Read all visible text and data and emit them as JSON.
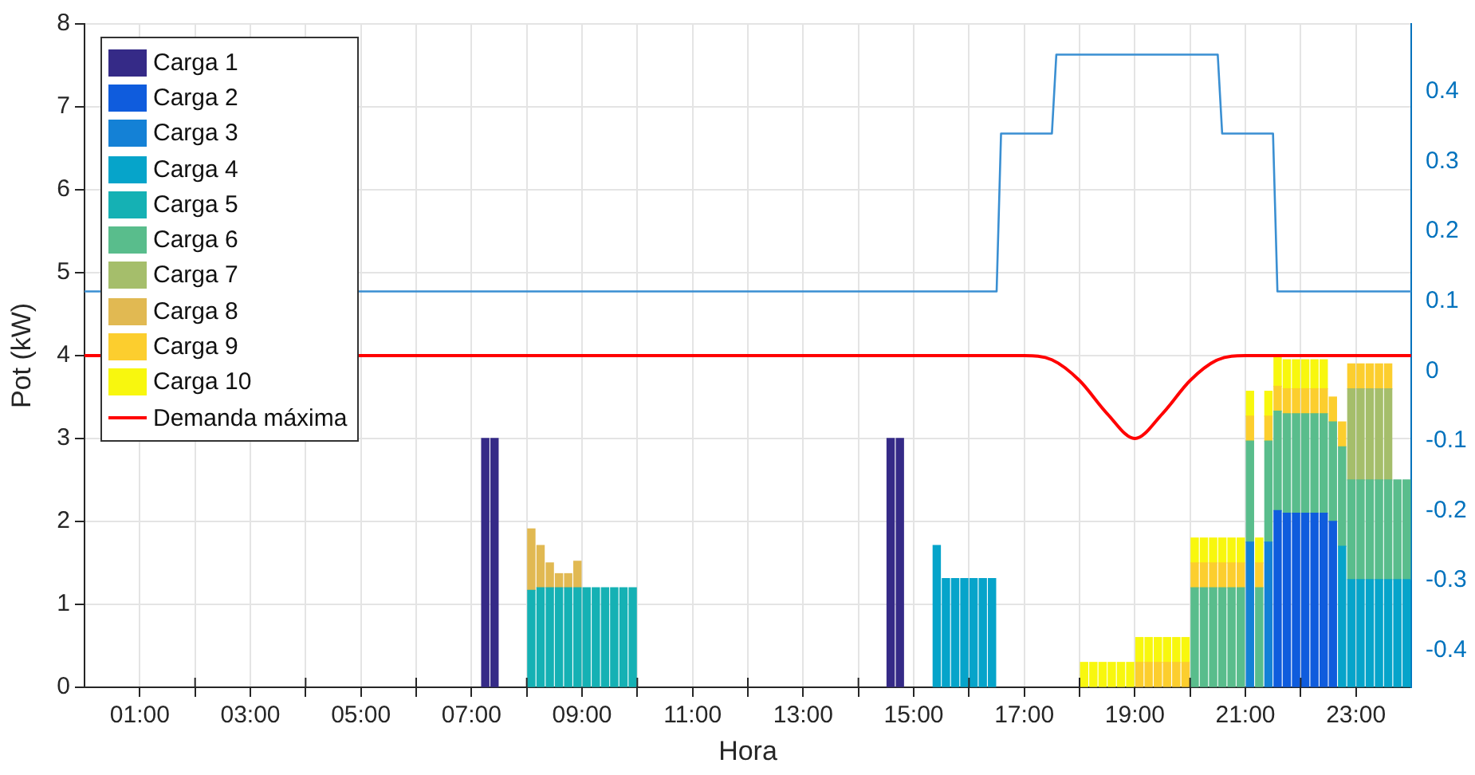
{
  "chart_data": {
    "type": "bar",
    "xlabel": "Hora",
    "ylabel": "Pot (kW)",
    "stacked": true,
    "grid": true,
    "legend": "top left",
    "xlim": [
      0,
      24
    ],
    "xticks": [
      {
        "value": 1,
        "label": "01:00"
      },
      {
        "value": 2,
        "label": null
      },
      {
        "value": 3,
        "label": "03:00"
      },
      {
        "value": 4,
        "label": null
      },
      {
        "value": 5,
        "label": "05:00"
      },
      {
        "value": 6,
        "label": null
      },
      {
        "value": 7,
        "label": "07:00"
      },
      {
        "value": 8,
        "label": null
      },
      {
        "value": 9,
        "label": "09:00"
      },
      {
        "value": 10,
        "label": null
      },
      {
        "value": 11,
        "label": "11:00"
      },
      {
        "value": 12,
        "label": null
      },
      {
        "value": 13,
        "label": "13:00"
      },
      {
        "value": 14,
        "label": null
      },
      {
        "value": 15,
        "label": "15:00"
      },
      {
        "value": 16,
        "label": null
      },
      {
        "value": 17,
        "label": "17:00"
      },
      {
        "value": 18,
        "label": null
      },
      {
        "value": 19,
        "label": "19:00"
      },
      {
        "value": 20,
        "label": null
      },
      {
        "value": 21,
        "label": "21:00"
      },
      {
        "value": 22,
        "label": null
      },
      {
        "value": 23,
        "label": "23:00"
      }
    ],
    "ylim": [
      0,
      8
    ],
    "yticks": [
      0,
      1,
      2,
      3,
      4,
      5,
      6,
      7,
      8
    ],
    "y2lim": [
      -0.453,
      0.497
    ],
    "y2ticks": [
      -0.4,
      -0.3,
      -0.2,
      -0.1,
      0,
      0.1,
      0.2,
      0.3,
      0.4
    ],
    "x": [
      7.25,
      7.417,
      8.083,
      8.25,
      8.417,
      8.583,
      8.75,
      8.917,
      9.083,
      9.25,
      9.417,
      9.583,
      9.75,
      9.917,
      14.583,
      14.75,
      15.417,
      15.583,
      15.75,
      15.917,
      16.083,
      16.25,
      16.417,
      18.083,
      18.25,
      18.417,
      18.583,
      18.75,
      18.917,
      19.083,
      19.25,
      19.417,
      19.583,
      19.75,
      19.917,
      20.083,
      20.25,
      20.417,
      20.583,
      20.75,
      20.917,
      21.083,
      21.25,
      21.417,
      21.583,
      21.75,
      21.917,
      22.083,
      22.25,
      22.417,
      22.583,
      22.75,
      22.917,
      23.083,
      23.25,
      23.417,
      23.583,
      23.75,
      23.917
    ],
    "series": [
      {
        "name": "Carga 1",
        "color": "#352a87",
        "values": [
          3,
          3,
          null,
          null,
          null,
          null,
          null,
          null,
          null,
          null,
          null,
          null,
          null,
          null,
          3,
          3,
          null,
          null,
          null,
          null,
          null,
          null,
          null,
          null,
          null,
          null,
          null,
          null,
          null,
          null,
          null,
          null,
          null,
          null,
          null,
          null,
          null,
          null,
          null,
          null,
          null,
          null,
          null,
          null,
          null,
          null,
          null,
          null,
          null,
          null,
          null,
          null,
          null,
          null,
          null,
          null,
          null,
          null,
          null
        ]
      },
      {
        "name": "Carga 2",
        "color": "#0f5cdd",
        "values": [
          null,
          null,
          null,
          null,
          null,
          null,
          null,
          null,
          null,
          null,
          null,
          null,
          null,
          null,
          null,
          null,
          null,
          null,
          null,
          null,
          null,
          null,
          null,
          null,
          null,
          null,
          null,
          null,
          null,
          null,
          null,
          null,
          null,
          null,
          null,
          null,
          null,
          null,
          null,
          null,
          null,
          null,
          null,
          null,
          2.13,
          2.1,
          2.1,
          2.1,
          2.1,
          2.1,
          2.0,
          null,
          null,
          null,
          null,
          null,
          null,
          null,
          null
        ]
      },
      {
        "name": "Carga 3",
        "color": "#1481d6",
        "values": [
          null,
          null,
          null,
          null,
          null,
          null,
          null,
          null,
          null,
          null,
          null,
          null,
          null,
          null,
          null,
          null,
          null,
          null,
          null,
          null,
          null,
          null,
          null,
          null,
          null,
          null,
          null,
          null,
          null,
          null,
          null,
          null,
          null,
          null,
          null,
          null,
          null,
          null,
          null,
          null,
          null,
          1.75,
          null,
          1.75,
          null,
          null,
          null,
          null,
          null,
          null,
          null,
          null,
          null,
          null,
          null,
          null,
          null,
          null,
          null
        ]
      },
      {
        "name": "Carga 4",
        "color": "#06a4ca",
        "values": [
          null,
          null,
          null,
          null,
          null,
          null,
          null,
          null,
          null,
          null,
          null,
          null,
          null,
          null,
          null,
          null,
          1.71,
          1.31,
          1.31,
          1.31,
          1.31,
          1.31,
          1.31,
          null,
          null,
          null,
          null,
          null,
          null,
          null,
          null,
          null,
          null,
          null,
          null,
          null,
          null,
          null,
          null,
          null,
          null,
          null,
          null,
          null,
          null,
          null,
          null,
          null,
          null,
          null,
          null,
          1.7,
          1.3,
          1.3,
          1.3,
          1.3,
          1.3,
          1.3,
          1.3
        ]
      },
      {
        "name": "Carga 5",
        "color": "#15b1b4",
        "values": [
          null,
          null,
          1.17,
          1.2,
          1.2,
          1.2,
          1.2,
          1.2,
          1.2,
          1.2,
          1.2,
          1.2,
          1.2,
          1.2,
          null,
          null,
          null,
          null,
          null,
          null,
          null,
          null,
          null,
          null,
          null,
          null,
          null,
          null,
          null,
          null,
          null,
          null,
          null,
          null,
          null,
          null,
          null,
          null,
          null,
          null,
          null,
          null,
          null,
          null,
          null,
          null,
          null,
          null,
          null,
          null,
          null,
          null,
          null,
          null,
          null,
          null,
          null,
          null,
          null
        ]
      },
      {
        "name": "Carga 6",
        "color": "#59bd8c",
        "values": [
          null,
          null,
          null,
          null,
          null,
          null,
          null,
          null,
          null,
          null,
          null,
          null,
          null,
          null,
          null,
          null,
          null,
          null,
          null,
          null,
          null,
          null,
          null,
          null,
          null,
          null,
          null,
          null,
          null,
          null,
          null,
          null,
          null,
          null,
          null,
          1.2,
          1.2,
          1.2,
          1.2,
          1.2,
          1.2,
          1.22,
          1.2,
          1.22,
          1.2,
          1.2,
          1.2,
          1.2,
          1.2,
          1.2,
          1.2,
          1.2,
          1.2,
          1.2,
          1.2,
          1.2,
          1.2,
          1.2,
          1.2
        ]
      },
      {
        "name": "Carga 7",
        "color": "#a5be6b",
        "values": [
          null,
          null,
          null,
          null,
          null,
          null,
          null,
          null,
          null,
          null,
          null,
          null,
          null,
          null,
          null,
          null,
          null,
          null,
          null,
          null,
          null,
          null,
          null,
          null,
          null,
          null,
          null,
          null,
          null,
          null,
          null,
          null,
          null,
          null,
          null,
          null,
          null,
          null,
          null,
          null,
          null,
          null,
          null,
          null,
          null,
          null,
          null,
          null,
          null,
          null,
          null,
          null,
          1.1,
          1.1,
          1.1,
          1.1,
          1.1,
          null,
          null
        ]
      },
      {
        "name": "Carga 8",
        "color": "#e1b952",
        "values": [
          null,
          null,
          0.74,
          0.51,
          0.3,
          0.17,
          0.17,
          0.32,
          null,
          null,
          null,
          null,
          null,
          null,
          null,
          null,
          null,
          null,
          null,
          null,
          null,
          null,
          null,
          null,
          null,
          null,
          null,
          null,
          null,
          null,
          null,
          null,
          null,
          null,
          null,
          null,
          null,
          null,
          null,
          null,
          null,
          null,
          null,
          null,
          null,
          null,
          null,
          null,
          null,
          null,
          null,
          null,
          null,
          null,
          null,
          null,
          null,
          null,
          null
        ]
      },
      {
        "name": "Carga 9",
        "color": "#fcce2e",
        "values": [
          null,
          null,
          null,
          null,
          null,
          null,
          null,
          null,
          null,
          null,
          null,
          null,
          null,
          null,
          null,
          null,
          null,
          null,
          null,
          null,
          null,
          null,
          null,
          null,
          null,
          null,
          null,
          null,
          null,
          0.3,
          0.3,
          0.3,
          0.3,
          0.3,
          0.3,
          0.3,
          0.3,
          0.3,
          0.3,
          0.3,
          0.3,
          0.3,
          0.3,
          0.3,
          0.3,
          0.3,
          0.3,
          0.3,
          0.3,
          0.3,
          0.3,
          0.3,
          0.3,
          0.3,
          0.3,
          0.3,
          0.3,
          null,
          null
        ]
      },
      {
        "name": "Carga 10",
        "color": "#f8f70e",
        "values": [
          null,
          null,
          null,
          null,
          null,
          null,
          null,
          null,
          null,
          null,
          null,
          null,
          null,
          null,
          null,
          null,
          null,
          null,
          null,
          null,
          null,
          null,
          null,
          0.3,
          0.3,
          0.3,
          0.3,
          0.3,
          0.3,
          0.3,
          0.3,
          0.3,
          0.3,
          0.3,
          0.3,
          0.3,
          0.3,
          0.3,
          0.3,
          0.3,
          0.3,
          0.3,
          0.3,
          0.3,
          0.35,
          0.35,
          0.35,
          0.35,
          0.35,
          0.35,
          null,
          null,
          null,
          null,
          null,
          null,
          null,
          null,
          null
        ]
      },
      {
        "name": "Demanda máxima",
        "type": "line",
        "color": "#ff0000",
        "x": [
          0,
          17,
          17.5,
          18,
          18.5,
          19,
          19.5,
          20,
          20.5,
          21,
          24
        ],
        "values": [
          4,
          4,
          3.95,
          3.7,
          3.3,
          3.0,
          3.3,
          3.7,
          3.95,
          4,
          4
        ]
      },
      {
        "type": "line",
        "axis": "y2",
        "color": "#3a8fd2",
        "x": [
          0,
          16.5,
          16.58,
          17.5,
          17.58,
          20.5,
          20.58,
          21.5,
          21.58,
          24
        ],
        "values": [
          0.114,
          0.114,
          0.34,
          0.34,
          0.453,
          0.453,
          0.34,
          0.34,
          0.114,
          0.114
        ]
      }
    ]
  }
}
